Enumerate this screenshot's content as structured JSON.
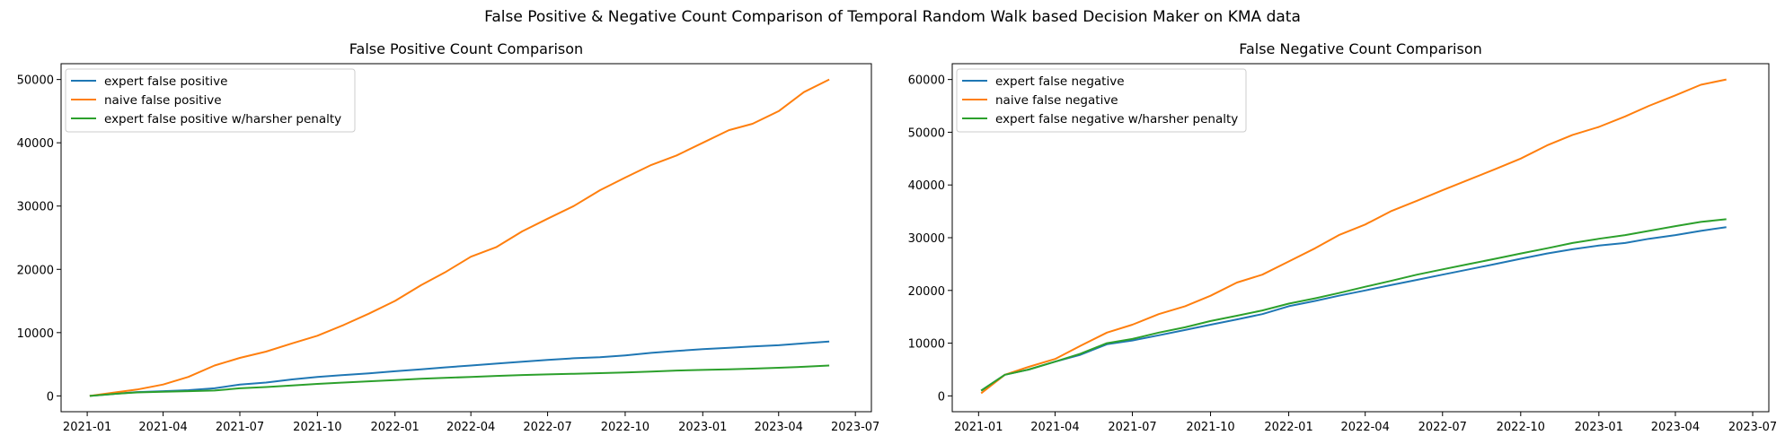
{
  "suptitle": "False Positive & Negative Count Comparison of Temporal Random Walk based Decision Maker on KMA data",
  "chart_data": [
    {
      "type": "line",
      "title": "False Positive Count Comparison",
      "xlabel": "",
      "ylabel": "",
      "x_is_date": true,
      "xlim": [
        "2020-12-01",
        "2023-07-20"
      ],
      "ylim": [
        -2500,
        52500
      ],
      "xticks": [
        "2021-01",
        "2021-04",
        "2021-07",
        "2021-10",
        "2022-01",
        "2022-04",
        "2022-07",
        "2022-10",
        "2023-01",
        "2023-04",
        "2023-07"
      ],
      "yticks": [
        0,
        10000,
        20000,
        30000,
        40000,
        50000
      ],
      "legend_position": "upper left",
      "grid": false,
      "series": [
        {
          "name": "expert false positive",
          "color": "#1f77b4",
          "x": [
            "2021-01-04",
            "2021-02-01",
            "2021-03-01",
            "2021-04-01",
            "2021-05-01",
            "2021-06-01",
            "2021-07-01",
            "2021-08-01",
            "2021-09-01",
            "2021-10-01",
            "2021-11-01",
            "2021-12-01",
            "2022-01-01",
            "2022-02-01",
            "2022-03-01",
            "2022-04-01",
            "2022-05-01",
            "2022-06-01",
            "2022-07-01",
            "2022-08-01",
            "2022-09-01",
            "2022-10-01",
            "2022-11-01",
            "2022-12-01",
            "2023-01-01",
            "2023-02-01",
            "2023-03-01",
            "2023-04-01",
            "2023-05-01",
            "2023-05-31"
          ],
          "y": [
            0,
            300,
            600,
            750,
            900,
            1200,
            1800,
            2100,
            2600,
            3000,
            3300,
            3550,
            3900,
            4200,
            4500,
            4800,
            5100,
            5400,
            5700,
            5950,
            6100,
            6400,
            6800,
            7100,
            7400,
            7600,
            7800,
            8000,
            8300,
            8600
          ]
        },
        {
          "name": "naive false positive",
          "color": "#ff7f0e",
          "x": [
            "2021-01-04",
            "2021-02-01",
            "2021-03-01",
            "2021-04-01",
            "2021-05-01",
            "2021-06-01",
            "2021-07-01",
            "2021-08-01",
            "2021-09-01",
            "2021-10-01",
            "2021-11-01",
            "2021-12-01",
            "2022-01-01",
            "2022-02-01",
            "2022-03-01",
            "2022-04-01",
            "2022-05-01",
            "2022-06-01",
            "2022-07-01",
            "2022-08-01",
            "2022-09-01",
            "2022-10-01",
            "2022-11-01",
            "2022-12-01",
            "2023-01-01",
            "2023-02-01",
            "2023-03-01",
            "2023-04-01",
            "2023-05-01",
            "2023-05-31"
          ],
          "y": [
            0,
            500,
            1000,
            1800,
            3000,
            4800,
            6000,
            7000,
            8300,
            9500,
            11200,
            13000,
            15000,
            17500,
            19500,
            22000,
            23500,
            26000,
            28000,
            30000,
            32500,
            34500,
            36500,
            38000,
            40000,
            42000,
            43000,
            45000,
            48000,
            50000
          ]
        },
        {
          "name": "expert false positive w/harsher penalty",
          "color": "#2ca02c",
          "x": [
            "2021-01-04",
            "2021-02-01",
            "2021-03-01",
            "2021-04-01",
            "2021-05-01",
            "2021-06-01",
            "2021-07-01",
            "2021-08-01",
            "2021-09-01",
            "2021-10-01",
            "2021-11-01",
            "2021-12-01",
            "2022-01-01",
            "2022-02-01",
            "2022-03-01",
            "2022-04-01",
            "2022-05-01",
            "2022-06-01",
            "2022-07-01",
            "2022-08-01",
            "2022-09-01",
            "2022-10-01",
            "2022-11-01",
            "2022-12-01",
            "2023-01-01",
            "2023-02-01",
            "2023-03-01",
            "2023-04-01",
            "2023-05-01",
            "2023-05-31"
          ],
          "y": [
            0,
            300,
            550,
            650,
            750,
            850,
            1200,
            1400,
            1650,
            1900,
            2100,
            2300,
            2500,
            2700,
            2850,
            3000,
            3150,
            3300,
            3400,
            3500,
            3600,
            3700,
            3850,
            4000,
            4100,
            4200,
            4300,
            4450,
            4600,
            4800
          ]
        }
      ]
    },
    {
      "type": "line",
      "title": "False Negative Count Comparison",
      "xlabel": "",
      "ylabel": "",
      "x_is_date": true,
      "xlim": [
        "2020-12-01",
        "2023-07-20"
      ],
      "ylim": [
        -3000,
        63000
      ],
      "xticks": [
        "2021-01",
        "2021-04",
        "2021-07",
        "2021-10",
        "2022-01",
        "2022-04",
        "2022-07",
        "2022-10",
        "2023-01",
        "2023-04",
        "2023-07"
      ],
      "yticks": [
        0,
        10000,
        20000,
        30000,
        40000,
        50000,
        60000
      ],
      "legend_position": "upper left",
      "grid": false,
      "series": [
        {
          "name": "expert false negative",
          "color": "#1f77b4",
          "x": [
            "2021-01-04",
            "2021-02-01",
            "2021-03-01",
            "2021-04-01",
            "2021-05-01",
            "2021-06-01",
            "2021-07-01",
            "2021-08-01",
            "2021-09-01",
            "2021-10-01",
            "2021-11-01",
            "2021-12-01",
            "2022-01-01",
            "2022-02-01",
            "2022-03-01",
            "2022-04-01",
            "2022-05-01",
            "2022-06-01",
            "2022-07-01",
            "2022-08-01",
            "2022-09-01",
            "2022-10-01",
            "2022-11-01",
            "2022-12-01",
            "2023-01-01",
            "2023-02-01",
            "2023-03-01",
            "2023-04-01",
            "2023-05-01",
            "2023-05-31"
          ],
          "y": [
            1000,
            4000,
            5000,
            6500,
            7800,
            9800,
            10500,
            11500,
            12500,
            13500,
            14500,
            15500,
            17000,
            18000,
            19000,
            20000,
            21000,
            22000,
            23000,
            24000,
            25000,
            26000,
            27000,
            27800,
            28500,
            29000,
            29800,
            30500,
            31300,
            32000
          ]
        },
        {
          "name": "naive false negative",
          "color": "#ff7f0e",
          "x": [
            "2021-01-04",
            "2021-02-01",
            "2021-03-01",
            "2021-04-01",
            "2021-05-01",
            "2021-06-01",
            "2021-07-01",
            "2021-08-01",
            "2021-09-01",
            "2021-10-01",
            "2021-11-01",
            "2021-12-01",
            "2022-01-01",
            "2022-02-01",
            "2022-03-01",
            "2022-04-01",
            "2022-05-01",
            "2022-06-01",
            "2022-07-01",
            "2022-08-01",
            "2022-09-01",
            "2022-10-01",
            "2022-11-01",
            "2022-12-01",
            "2023-01-01",
            "2023-02-01",
            "2023-03-01",
            "2023-04-01",
            "2023-05-01",
            "2023-05-31"
          ],
          "y": [
            500,
            4000,
            5500,
            7000,
            9500,
            12000,
            13500,
            15500,
            17000,
            19000,
            21500,
            23000,
            25500,
            28000,
            30500,
            32500,
            35000,
            37000,
            39000,
            41000,
            43000,
            45000,
            47500,
            49500,
            51000,
            53000,
            55000,
            57000,
            59000,
            60000
          ]
        },
        {
          "name": "expert false negative w/harsher penalty",
          "color": "#2ca02c",
          "x": [
            "2021-01-04",
            "2021-02-01",
            "2021-03-01",
            "2021-04-01",
            "2021-05-01",
            "2021-06-01",
            "2021-07-01",
            "2021-08-01",
            "2021-09-01",
            "2021-10-01",
            "2021-11-01",
            "2021-12-01",
            "2022-01-01",
            "2022-02-01",
            "2022-03-01",
            "2022-04-01",
            "2022-05-01",
            "2022-06-01",
            "2022-07-01",
            "2022-08-01",
            "2022-09-01",
            "2022-10-01",
            "2022-11-01",
            "2022-12-01",
            "2023-01-01",
            "2023-02-01",
            "2023-03-01",
            "2023-04-01",
            "2023-05-01",
            "2023-05-31"
          ],
          "y": [
            1000,
            4000,
            5000,
            6500,
            8000,
            10000,
            10800,
            12000,
            13000,
            14200,
            15200,
            16200,
            17500,
            18500,
            19500,
            20700,
            21800,
            23000,
            24000,
            25000,
            26000,
            27000,
            28000,
            29000,
            29800,
            30500,
            31300,
            32200,
            33000,
            33500
          ]
        }
      ]
    }
  ]
}
